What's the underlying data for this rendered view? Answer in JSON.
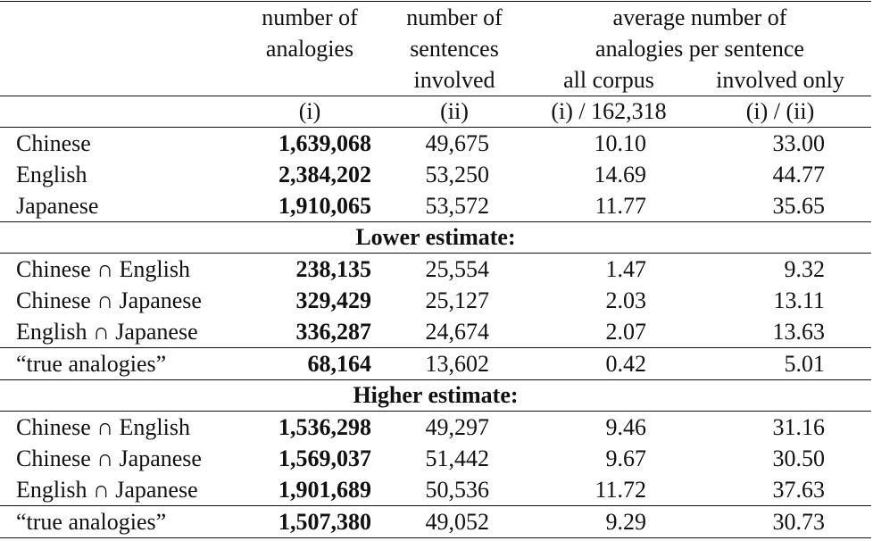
{
  "header": {
    "col1_line1": "number of",
    "col1_line2": "analogies",
    "col2_line1": "number of",
    "col2_line2": "sentences",
    "col2_line3": "involved",
    "avg_line1": "average number of",
    "avg_line2": "analogies per sentence",
    "col3_sub": "all corpus",
    "col4_sub": "involved only",
    "col1_formula": "(i)",
    "col2_formula": "(ii)",
    "col3_formula": "(i) / 162,318",
    "col4_formula": "(i) / (ii)"
  },
  "rows_main": [
    {
      "label": "Chinese",
      "analogies": "1,639,068",
      "sentences": "49,675",
      "all": "10.10",
      "involved": "33.00"
    },
    {
      "label": "English",
      "analogies": "2,384,202",
      "sentences": "53,250",
      "all": "14.69",
      "involved": "44.77"
    },
    {
      "label": "Japanese",
      "analogies": "1,910,065",
      "sentences": "53,572",
      "all": "11.77",
      "involved": "35.65"
    }
  ],
  "lower": {
    "title": "Lower estimate:",
    "rows": [
      {
        "label": "Chinese ∩ English",
        "analogies": "238,135",
        "sentences": "25,554",
        "all": "1.47",
        "involved": "9.32"
      },
      {
        "label": "Chinese ∩ Japanese",
        "analogies": "329,429",
        "sentences": "25,127",
        "all": "2.03",
        "involved": "13.11"
      },
      {
        "label": "English ∩ Japanese",
        "analogies": "336,287",
        "sentences": "24,674",
        "all": "2.07",
        "involved": "13.63"
      }
    ],
    "true": {
      "label": "“true analogies”",
      "analogies": "68,164",
      "sentences": "13,602",
      "all": "0.42",
      "involved": "5.01"
    }
  },
  "higher": {
    "title": "Higher estimate:",
    "rows": [
      {
        "label": "Chinese ∩ English",
        "analogies": "1,536,298",
        "sentences": "49,297",
        "all": "9.46",
        "involved": "31.16"
      },
      {
        "label": "Chinese ∩ Japanese",
        "analogies": "1,569,037",
        "sentences": "51,442",
        "all": "9.67",
        "involved": "30.50"
      },
      {
        "label": "English ∩ Japanese",
        "analogies": "1,901,689",
        "sentences": "50,536",
        "all": "11.72",
        "involved": "37.63"
      }
    ],
    "true": {
      "label": "“true analogies”",
      "analogies": "1,507,380",
      "sentences": "49,052",
      "all": "9.29",
      "involved": "30.73"
    }
  }
}
